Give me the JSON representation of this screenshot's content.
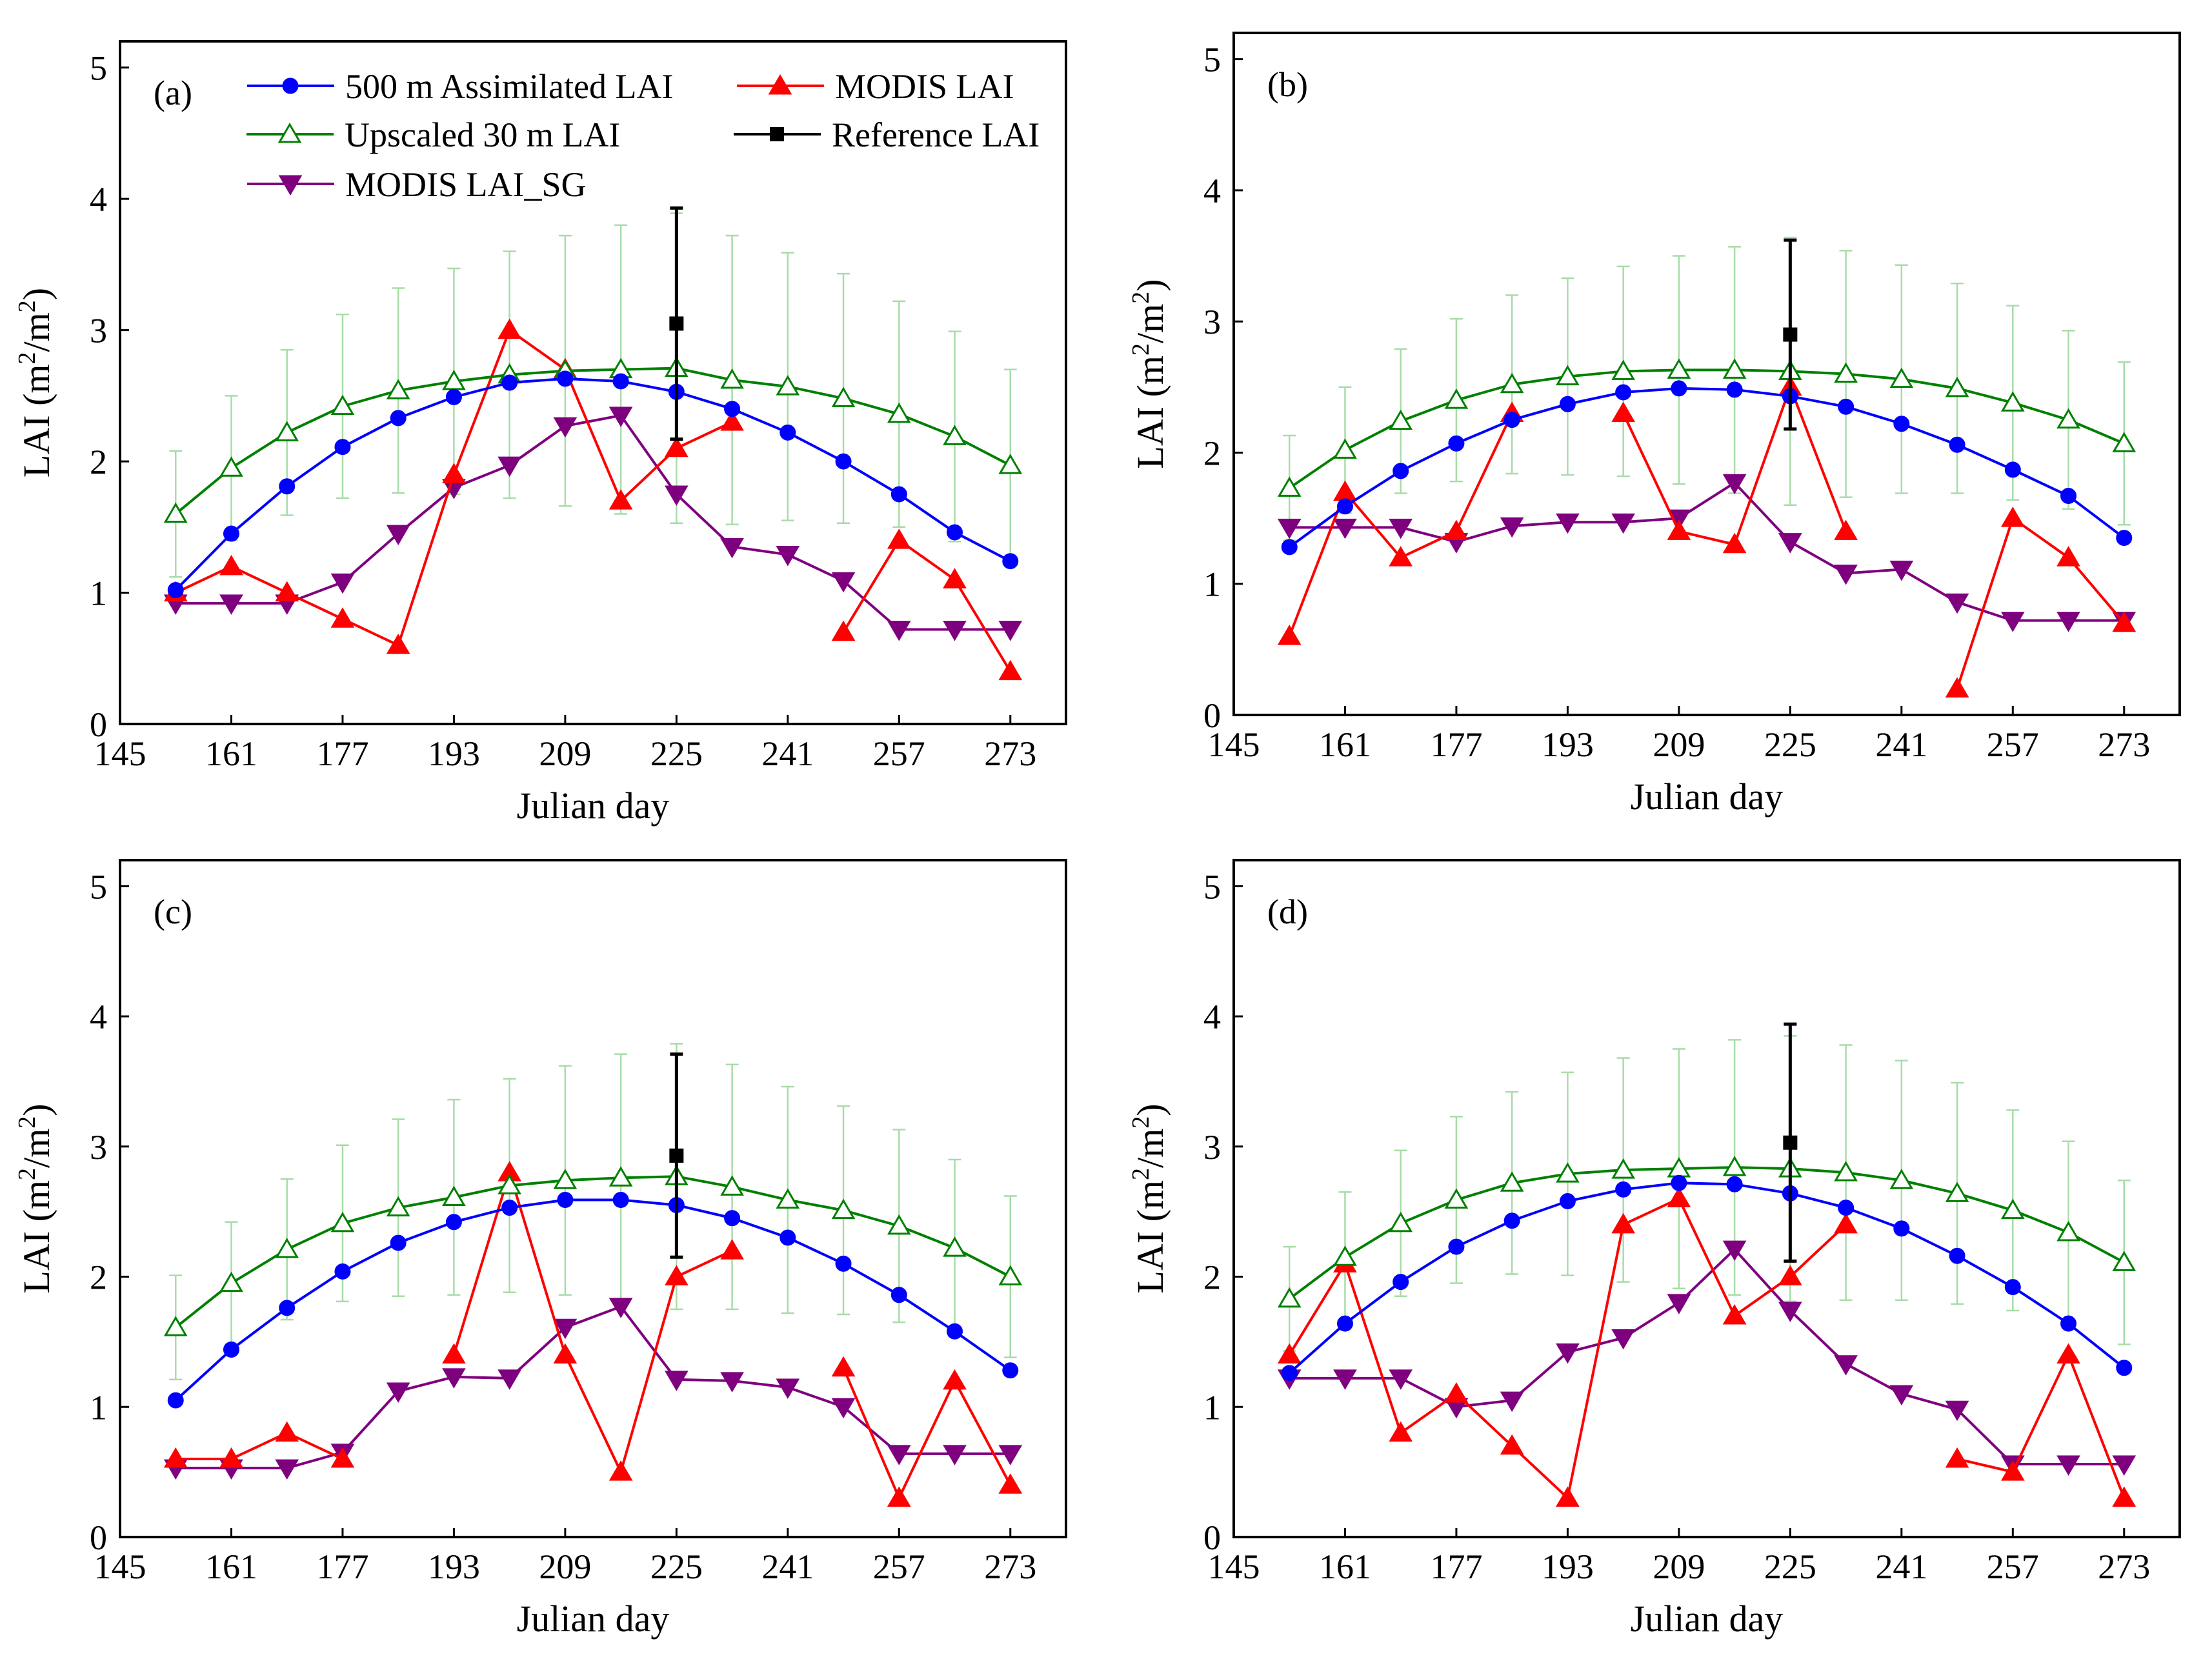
{
  "colors": {
    "assimilated": "#0000ff",
    "modis": "#ff0000",
    "upscaled": "#008000",
    "upscaled_err": "#a8dca8",
    "reference": "#000000",
    "modis_sg": "#7f007f"
  },
  "legend": {
    "assimilated": "500 m Assimilated LAI",
    "modis": "MODIS LAI",
    "upscaled": "Upscaled 30 m LAI",
    "reference": "Reference LAI",
    "modis_sg": "MODIS LAI_SG"
  },
  "chart_data": [
    {
      "panel": "(a)",
      "type": "line",
      "xlabel": "Julian day",
      "ylabel": "LAI (m2/m2)",
      "ylabel_parts": {
        "base": "LAI (m",
        "sup1": "2",
        "mid": "/m",
        "sup2": "2",
        "end": ")"
      },
      "xlim": [
        145,
        281
      ],
      "ylim": [
        0,
        5.2
      ],
      "xticks": [
        145,
        161,
        177,
        193,
        209,
        225,
        241,
        257,
        273
      ],
      "yticks": [
        0,
        1,
        2,
        3,
        4,
        5
      ],
      "show_legend": true,
      "series": {
        "assimilated": {
          "x": [
            153,
            161,
            169,
            177,
            185,
            193,
            201,
            209,
            217,
            225,
            233,
            241,
            249,
            257,
            265,
            273
          ],
          "y": [
            1.02,
            1.45,
            1.81,
            2.11,
            2.33,
            2.49,
            2.6,
            2.63,
            2.61,
            2.53,
            2.4,
            2.22,
            2.0,
            1.75,
            1.46,
            1.24
          ]
        },
        "upscaled": {
          "x": [
            153,
            161,
            169,
            177,
            185,
            193,
            201,
            209,
            217,
            225,
            233,
            241,
            249,
            257,
            265,
            273
          ],
          "y": [
            1.6,
            1.95,
            2.22,
            2.42,
            2.54,
            2.61,
            2.66,
            2.69,
            2.7,
            2.71,
            2.62,
            2.57,
            2.48,
            2.36,
            2.19,
            1.97
          ],
          "err": [
            0.48,
            0.55,
            0.63,
            0.7,
            0.78,
            0.86,
            0.94,
            1.03,
            1.1,
            1.18,
            1.1,
            1.02,
            0.95,
            0.86,
            0.8,
            0.73
          ]
        },
        "modis": {
          "segments": [
            {
              "x": [
                153,
                161,
                169,
                177,
                185,
                193,
                201,
                209,
                217,
                225,
                233
              ],
              "y": [
                1.0,
                1.2,
                1.0,
                0.8,
                0.6,
                1.9,
                3.0,
                2.7,
                1.7,
                2.1,
                2.3
              ]
            },
            {
              "x": [
                249,
                257,
                265,
                273
              ],
              "y": [
                0.7,
                1.4,
                1.1,
                0.4
              ]
            }
          ]
        },
        "modis_sg": {
          "x": [
            153,
            161,
            169,
            177,
            185,
            193,
            201,
            209,
            217,
            225,
            233,
            241,
            249,
            257,
            265,
            273
          ],
          "y": [
            0.92,
            0.92,
            0.92,
            1.08,
            1.45,
            1.8,
            1.97,
            2.27,
            2.35,
            1.75,
            1.35,
            1.29,
            1.09,
            0.72,
            0.72,
            0.72
          ]
        },
        "reference": {
          "x": 225,
          "y": 3.05,
          "err": 0.88
        }
      }
    },
    {
      "panel": "(b)",
      "type": "line",
      "xlabel": "Julian day",
      "ylabel": "LAI (m2/m2)",
      "ylabel_parts": {
        "base": "LAI (m",
        "sup1": "2",
        "mid": "/m",
        "sup2": "2",
        "end": ")"
      },
      "xlim": [
        145,
        281
      ],
      "ylim": [
        0,
        5.2
      ],
      "xticks": [
        145,
        161,
        177,
        193,
        209,
        225,
        241,
        257,
        273
      ],
      "yticks": [
        0,
        1,
        2,
        3,
        4,
        5
      ],
      "show_legend": false,
      "series": {
        "assimilated": {
          "x": [
            153,
            161,
            169,
            177,
            185,
            193,
            201,
            209,
            217,
            225,
            233,
            241,
            249,
            257,
            265,
            273
          ],
          "y": [
            1.28,
            1.59,
            1.86,
            2.07,
            2.25,
            2.37,
            2.46,
            2.49,
            2.48,
            2.43,
            2.35,
            2.22,
            2.06,
            1.87,
            1.67,
            1.35
          ]
        },
        "upscaled": {
          "x": [
            153,
            161,
            169,
            177,
            185,
            193,
            201,
            209,
            217,
            225,
            233,
            241,
            249,
            257,
            265,
            273
          ],
          "y": [
            1.73,
            2.02,
            2.24,
            2.4,
            2.52,
            2.58,
            2.62,
            2.63,
            2.63,
            2.62,
            2.6,
            2.56,
            2.49,
            2.38,
            2.25,
            2.07
          ],
          "err": [
            0.4,
            0.48,
            0.55,
            0.62,
            0.68,
            0.75,
            0.8,
            0.87,
            0.94,
            1.02,
            0.94,
            0.87,
            0.8,
            0.74,
            0.68,
            0.62
          ]
        },
        "modis": {
          "segments": [
            {
              "x": [
                153,
                161,
                169,
                177,
                185
              ],
              "y": [
                0.6,
                1.7,
                1.2,
                1.4,
                2.3
              ]
            },
            {
              "x": [
                201,
                209,
                217,
                225,
                233
              ],
              "y": [
                2.3,
                1.4,
                1.3,
                2.5,
                1.4
              ]
            },
            {
              "x": [
                249,
                257,
                265,
                273
              ],
              "y": [
                0.2,
                1.5,
                1.2,
                0.7
              ]
            }
          ]
        },
        "modis_sg": {
          "x": [
            153,
            161,
            169,
            177,
            185,
            193,
            201,
            209,
            217,
            225,
            233,
            241,
            249,
            257,
            265,
            273
          ],
          "y": [
            1.43,
            1.43,
            1.43,
            1.32,
            1.44,
            1.47,
            1.47,
            1.5,
            1.77,
            1.32,
            1.08,
            1.11,
            0.86,
            0.72,
            0.72,
            0.72
          ]
        },
        "reference": {
          "x": 225,
          "y": 2.9,
          "err": 0.72
        }
      }
    },
    {
      "panel": "(c)",
      "type": "line",
      "xlabel": "Julian day",
      "ylabel": "LAI (m2/m2)",
      "ylabel_parts": {
        "base": "LAI (m",
        "sup1": "2",
        "mid": "/m",
        "sup2": "2",
        "end": ")"
      },
      "xlim": [
        145,
        281
      ],
      "ylim": [
        0,
        5.2
      ],
      "xticks": [
        145,
        161,
        177,
        193,
        209,
        225,
        241,
        257,
        273
      ],
      "yticks": [
        0,
        1,
        2,
        3,
        4,
        5
      ],
      "show_legend": false,
      "series": {
        "assimilated": {
          "x": [
            153,
            161,
            169,
            177,
            185,
            193,
            201,
            209,
            217,
            225,
            233,
            241,
            249,
            257,
            265,
            273
          ],
          "y": [
            1.05,
            1.44,
            1.76,
            2.04,
            2.26,
            2.42,
            2.53,
            2.59,
            2.59,
            2.55,
            2.45,
            2.3,
            2.1,
            1.86,
            1.58,
            1.28
          ]
        },
        "upscaled": {
          "x": [
            153,
            161,
            169,
            177,
            185,
            193,
            201,
            209,
            217,
            225,
            233,
            241,
            249,
            257,
            265,
            273
          ],
          "y": [
            1.61,
            1.95,
            2.21,
            2.41,
            2.53,
            2.61,
            2.7,
            2.74,
            2.76,
            2.77,
            2.69,
            2.59,
            2.51,
            2.39,
            2.22,
            2.0
          ],
          "err": [
            0.4,
            0.47,
            0.54,
            0.6,
            0.68,
            0.75,
            0.82,
            0.88,
            0.95,
            1.02,
            0.94,
            0.87,
            0.8,
            0.74,
            0.68,
            0.62
          ]
        },
        "modis": {
          "segments": [
            {
              "x": [
                153,
                161,
                169,
                177
              ],
              "y": [
                0.6,
                0.6,
                0.8,
                0.6
              ]
            },
            {
              "x": [
                193,
                201,
                209,
                217,
                225,
                233
              ],
              "y": [
                1.4,
                2.8,
                1.4,
                0.5,
                2.0,
                2.2
              ]
            },
            {
              "x": [
                249,
                257,
                265,
                273
              ],
              "y": [
                1.3,
                0.3,
                1.2,
                0.4
              ]
            }
          ]
        },
        "modis_sg": {
          "x": [
            153,
            161,
            169,
            177,
            185,
            193,
            201,
            209,
            217,
            225,
            233,
            241,
            249,
            257,
            265,
            273
          ],
          "y": [
            0.53,
            0.53,
            0.53,
            0.65,
            1.12,
            1.23,
            1.22,
            1.61,
            1.77,
            1.21,
            1.2,
            1.15,
            1.0,
            0.64,
            0.64,
            0.64
          ]
        },
        "reference": {
          "x": 225,
          "y": 2.93,
          "err": 0.78
        }
      }
    },
    {
      "panel": "(d)",
      "type": "line",
      "xlabel": "Julian day",
      "ylabel": "LAI (m2/m2)",
      "ylabel_parts": {
        "base": "LAI (m",
        "sup1": "2",
        "mid": "/m",
        "sup2": "2",
        "end": ")"
      },
      "xlim": [
        145,
        281
      ],
      "ylim": [
        0,
        5.2
      ],
      "xticks": [
        145,
        161,
        177,
        193,
        209,
        225,
        241,
        257,
        273
      ],
      "yticks": [
        0,
        1,
        2,
        3,
        4,
        5
      ],
      "show_legend": false,
      "series": {
        "assimilated": {
          "x": [
            153,
            161,
            169,
            177,
            185,
            193,
            201,
            209,
            217,
            225,
            233,
            241,
            249,
            257,
            265,
            273
          ],
          "y": [
            1.26,
            1.64,
            1.96,
            2.23,
            2.43,
            2.58,
            2.67,
            2.72,
            2.71,
            2.64,
            2.53,
            2.37,
            2.16,
            1.92,
            1.64,
            1.3
          ]
        },
        "upscaled": {
          "x": [
            153,
            161,
            169,
            177,
            185,
            193,
            201,
            209,
            217,
            225,
            233,
            241,
            249,
            257,
            265,
            273
          ],
          "y": [
            1.83,
            2.15,
            2.41,
            2.59,
            2.72,
            2.79,
            2.82,
            2.83,
            2.84,
            2.83,
            2.8,
            2.74,
            2.64,
            2.51,
            2.34,
            2.11
          ],
          "err": [
            0.4,
            0.5,
            0.56,
            0.64,
            0.7,
            0.78,
            0.86,
            0.92,
            0.98,
            1.02,
            0.98,
            0.92,
            0.85,
            0.77,
            0.7,
            0.63
          ]
        },
        "modis": {
          "segments": [
            {
              "x": [
                153,
                161,
                169,
                177,
                185,
                193,
                201,
                209,
                217,
                225,
                233
              ],
              "y": [
                1.4,
                2.1,
                0.8,
                1.1,
                0.7,
                0.3,
                2.4,
                2.6,
                1.7,
                2.0,
                2.4
              ]
            },
            {
              "x": [
                249,
                257,
                265,
                273
              ],
              "y": [
                0.6,
                0.5,
                1.4,
                0.3
              ]
            }
          ]
        },
        "modis_sg": {
          "x": [
            153,
            161,
            169,
            177,
            185,
            193,
            201,
            209,
            217,
            225,
            233,
            241,
            249,
            257,
            265,
            273
          ],
          "y": [
            1.22,
            1.22,
            1.22,
            1.0,
            1.05,
            1.42,
            1.53,
            1.8,
            2.21,
            1.74,
            1.33,
            1.1,
            0.98,
            0.56,
            0.56,
            0.56
          ]
        },
        "reference": {
          "x": 225,
          "y": 3.03,
          "err": 0.91
        }
      }
    }
  ]
}
